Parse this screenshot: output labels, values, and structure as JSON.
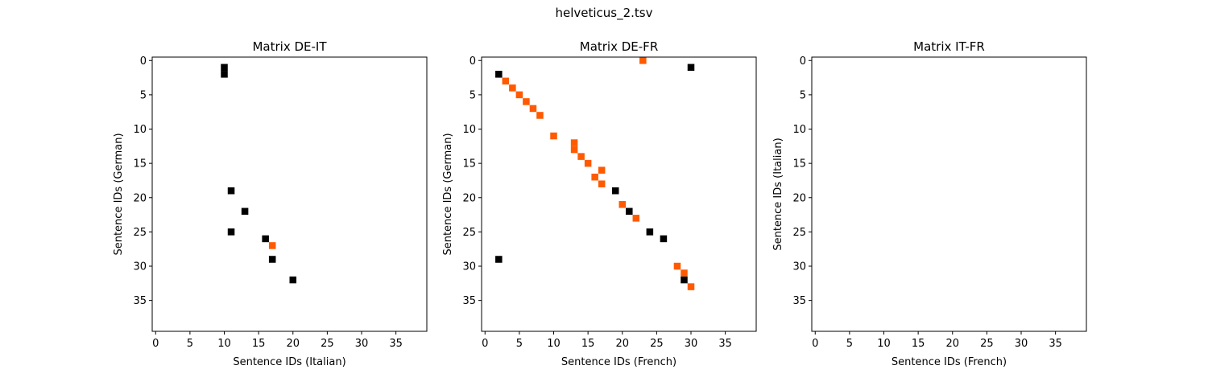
{
  "figure": {
    "suptitle": "helveticus_2.tsv"
  },
  "colors": {
    "black": "#000000",
    "orange": "#ff5a00",
    "frame": "#000000"
  },
  "chart_data": [
    {
      "type": "heatmap",
      "title": "Matrix DE-IT",
      "xlabel": "Sentence IDs (Italian)",
      "ylabel": "Sentence IDs (German)",
      "xlim": [
        -0.5,
        39.5
      ],
      "ylim": [
        39.5,
        -0.5
      ],
      "xticks": [
        0,
        5,
        10,
        15,
        20,
        25,
        30,
        35
      ],
      "yticks": [
        0,
        5,
        10,
        15,
        20,
        25,
        30,
        35
      ],
      "cells": [
        {
          "x": 10,
          "y": 1,
          "color": "black"
        },
        {
          "x": 10,
          "y": 2,
          "color": "black"
        },
        {
          "x": 11,
          "y": 19,
          "color": "black"
        },
        {
          "x": 13,
          "y": 22,
          "color": "black"
        },
        {
          "x": 11,
          "y": 25,
          "color": "black"
        },
        {
          "x": 16,
          "y": 26,
          "color": "black"
        },
        {
          "x": 17,
          "y": 27,
          "color": "orange"
        },
        {
          "x": 17,
          "y": 29,
          "color": "black"
        },
        {
          "x": 20,
          "y": 32,
          "color": "black"
        }
      ]
    },
    {
      "type": "heatmap",
      "title": "Matrix DE-FR",
      "xlabel": "Sentence IDs (French)",
      "ylabel": "Sentence IDs (German)",
      "xlim": [
        -0.5,
        39.5
      ],
      "ylim": [
        39.5,
        -0.5
      ],
      "xticks": [
        0,
        5,
        10,
        15,
        20,
        25,
        30,
        35
      ],
      "yticks": [
        0,
        5,
        10,
        15,
        20,
        25,
        30,
        35
      ],
      "cells": [
        {
          "x": 23,
          "y": 0,
          "color": "orange"
        },
        {
          "x": 30,
          "y": 1,
          "color": "black"
        },
        {
          "x": 2,
          "y": 2,
          "color": "black"
        },
        {
          "x": 3,
          "y": 3,
          "color": "orange"
        },
        {
          "x": 4,
          "y": 4,
          "color": "orange"
        },
        {
          "x": 5,
          "y": 5,
          "color": "orange"
        },
        {
          "x": 6,
          "y": 6,
          "color": "orange"
        },
        {
          "x": 7,
          "y": 7,
          "color": "orange"
        },
        {
          "x": 8,
          "y": 8,
          "color": "orange"
        },
        {
          "x": 10,
          "y": 11,
          "color": "orange"
        },
        {
          "x": 13,
          "y": 12,
          "color": "orange"
        },
        {
          "x": 13,
          "y": 13,
          "color": "orange"
        },
        {
          "x": 14,
          "y": 14,
          "color": "orange"
        },
        {
          "x": 15,
          "y": 15,
          "color": "orange"
        },
        {
          "x": 17,
          "y": 16,
          "color": "orange"
        },
        {
          "x": 16,
          "y": 17,
          "color": "orange"
        },
        {
          "x": 17,
          "y": 18,
          "color": "orange"
        },
        {
          "x": 19,
          "y": 19,
          "color": "black"
        },
        {
          "x": 20,
          "y": 21,
          "color": "orange"
        },
        {
          "x": 21,
          "y": 22,
          "color": "black"
        },
        {
          "x": 22,
          "y": 23,
          "color": "orange"
        },
        {
          "x": 24,
          "y": 25,
          "color": "black"
        },
        {
          "x": 26,
          "y": 26,
          "color": "black"
        },
        {
          "x": 2,
          "y": 29,
          "color": "black"
        },
        {
          "x": 28,
          "y": 30,
          "color": "orange"
        },
        {
          "x": 29,
          "y": 31,
          "color": "orange"
        },
        {
          "x": 29,
          "y": 32,
          "color": "black"
        },
        {
          "x": 30,
          "y": 33,
          "color": "orange"
        }
      ]
    },
    {
      "type": "heatmap",
      "title": "Matrix IT-FR",
      "xlabel": "Sentence IDs (French)",
      "ylabel": "Sentence IDs (Italian)",
      "xlim": [
        -0.5,
        39.5
      ],
      "ylim": [
        39.5,
        -0.5
      ],
      "xticks": [
        0,
        5,
        10,
        15,
        20,
        25,
        30,
        35
      ],
      "yticks": [
        0,
        5,
        10,
        15,
        20,
        25,
        30,
        35
      ],
      "cells": []
    }
  ]
}
